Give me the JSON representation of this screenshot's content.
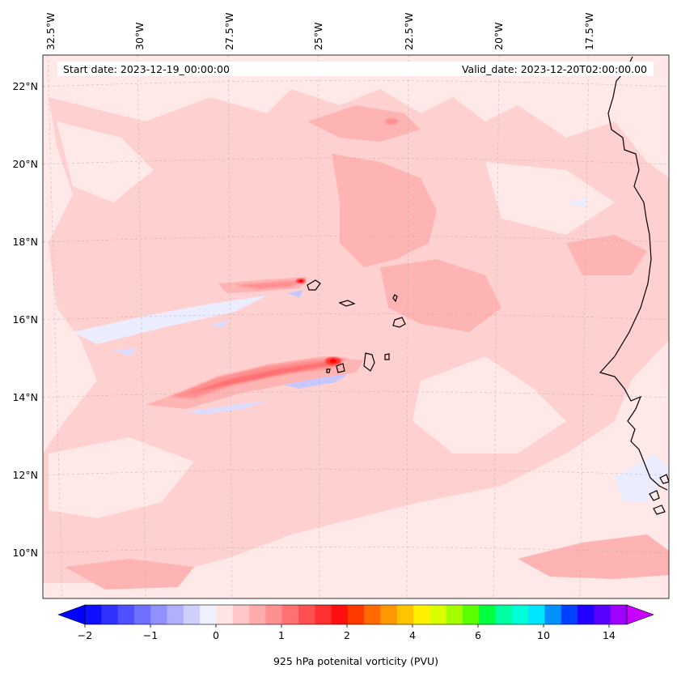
{
  "header": {
    "start_date": "Start date: 2023-12-19_00:00:00",
    "valid_date": "Valid_date: 2023-12-20T02:00:00.00"
  },
  "longitude_labels": [
    "32.5°W",
    "30°W",
    "27.5°W",
    "25°W",
    "22.5°W",
    "20°W",
    "17.5°W"
  ],
  "latitude_labels": [
    "22°N",
    "20°N",
    "18°N",
    "16°N",
    "14°N",
    "12°N",
    "10°N"
  ],
  "colorbar": {
    "label": "925 hPa potenital vorticity (PVU)",
    "tick_labels": [
      "−2",
      "−1",
      "0",
      "1",
      "2",
      "4",
      "6",
      "10",
      "14"
    ],
    "colors": [
      "#1010ff",
      "#3030ff",
      "#5050ff",
      "#7070ff",
      "#9090ff",
      "#b0b0ff",
      "#d0d0ff",
      "#f0f0ff",
      "#ffe4e4",
      "#ffc8c8",
      "#ffacac",
      "#ff9090",
      "#ff7070",
      "#ff5050",
      "#ff3030",
      "#ff1010",
      "#ff3a00",
      "#ff6a00",
      "#ff9800",
      "#ffc400",
      "#fff000",
      "#d8ff00",
      "#a4ff00",
      "#5cff00",
      "#00ff40",
      "#00ffa0",
      "#00ffd8",
      "#00e4ff",
      "#0090ff",
      "#0040ff",
      "#2000ff",
      "#5a00ff",
      "#a000ff"
    ],
    "under_color": "#0000ff",
    "over_color": "#c800ff"
  },
  "map": {
    "background_color": "#ffe8e8",
    "coastline_color": "#000000"
  }
}
